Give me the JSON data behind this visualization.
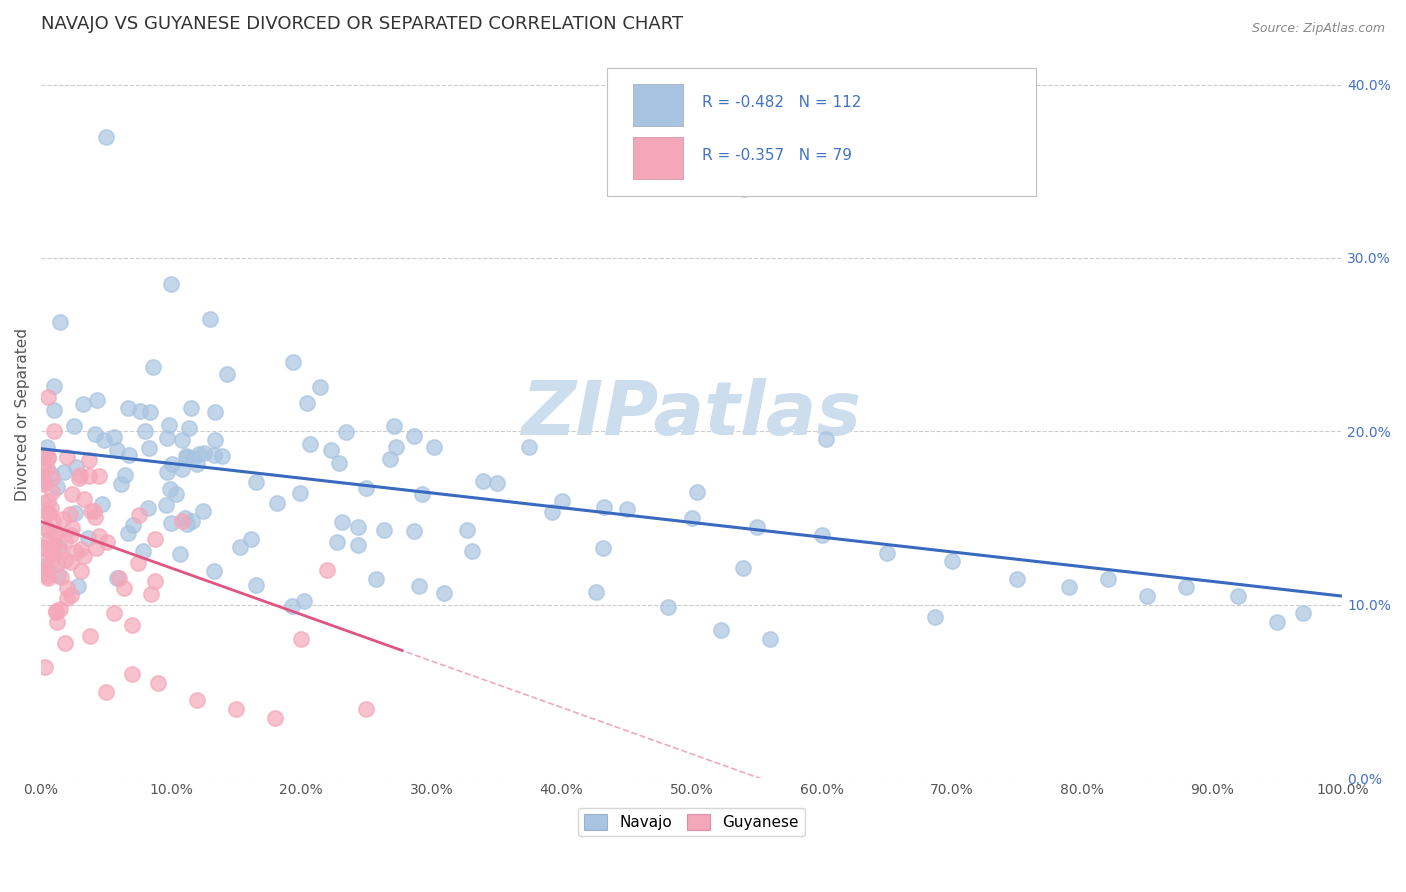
{
  "title": "NAVAJO VS GUYANESE DIVORCED OR SEPARATED CORRELATION CHART",
  "source_text": "Source: ZipAtlas.com",
  "ylabel": "Divorced or Separated",
  "xlim": [
    0.0,
    1.0
  ],
  "ylim": [
    0.0,
    0.42
  ],
  "xticks": [
    0.0,
    0.1,
    0.2,
    0.3,
    0.4,
    0.5,
    0.6,
    0.7,
    0.8,
    0.9,
    1.0
  ],
  "xtick_labels": [
    "0.0%",
    "10.0%",
    "20.0%",
    "30.0%",
    "40.0%",
    "50.0%",
    "60.0%",
    "70.0%",
    "80.0%",
    "90.0%",
    "100.0%"
  ],
  "yticks": [
    0.0,
    0.1,
    0.2,
    0.3,
    0.4
  ],
  "ytick_labels": [
    "0.0%",
    "10.0%",
    "20.0%",
    "30.0%",
    "40.0%"
  ],
  "navajo_R": -0.482,
  "navajo_N": 112,
  "guyanese_R": -0.357,
  "guyanese_N": 79,
  "navajo_color": "#a8c4e0",
  "guyanese_color": "#f4a7b9",
  "navajo_line_color": "#3a6abf",
  "guyanese_line_color": "#e05580",
  "watermark": "ZIPatlas",
  "watermark_color": "#ccdded",
  "legend_label_navajo": "Navajo",
  "legend_label_guyanese": "Guyanese",
  "background_color": "#ffffff",
  "grid_color": "#cccccc",
  "title_color": "#333333",
  "title_fontsize": 13
}
